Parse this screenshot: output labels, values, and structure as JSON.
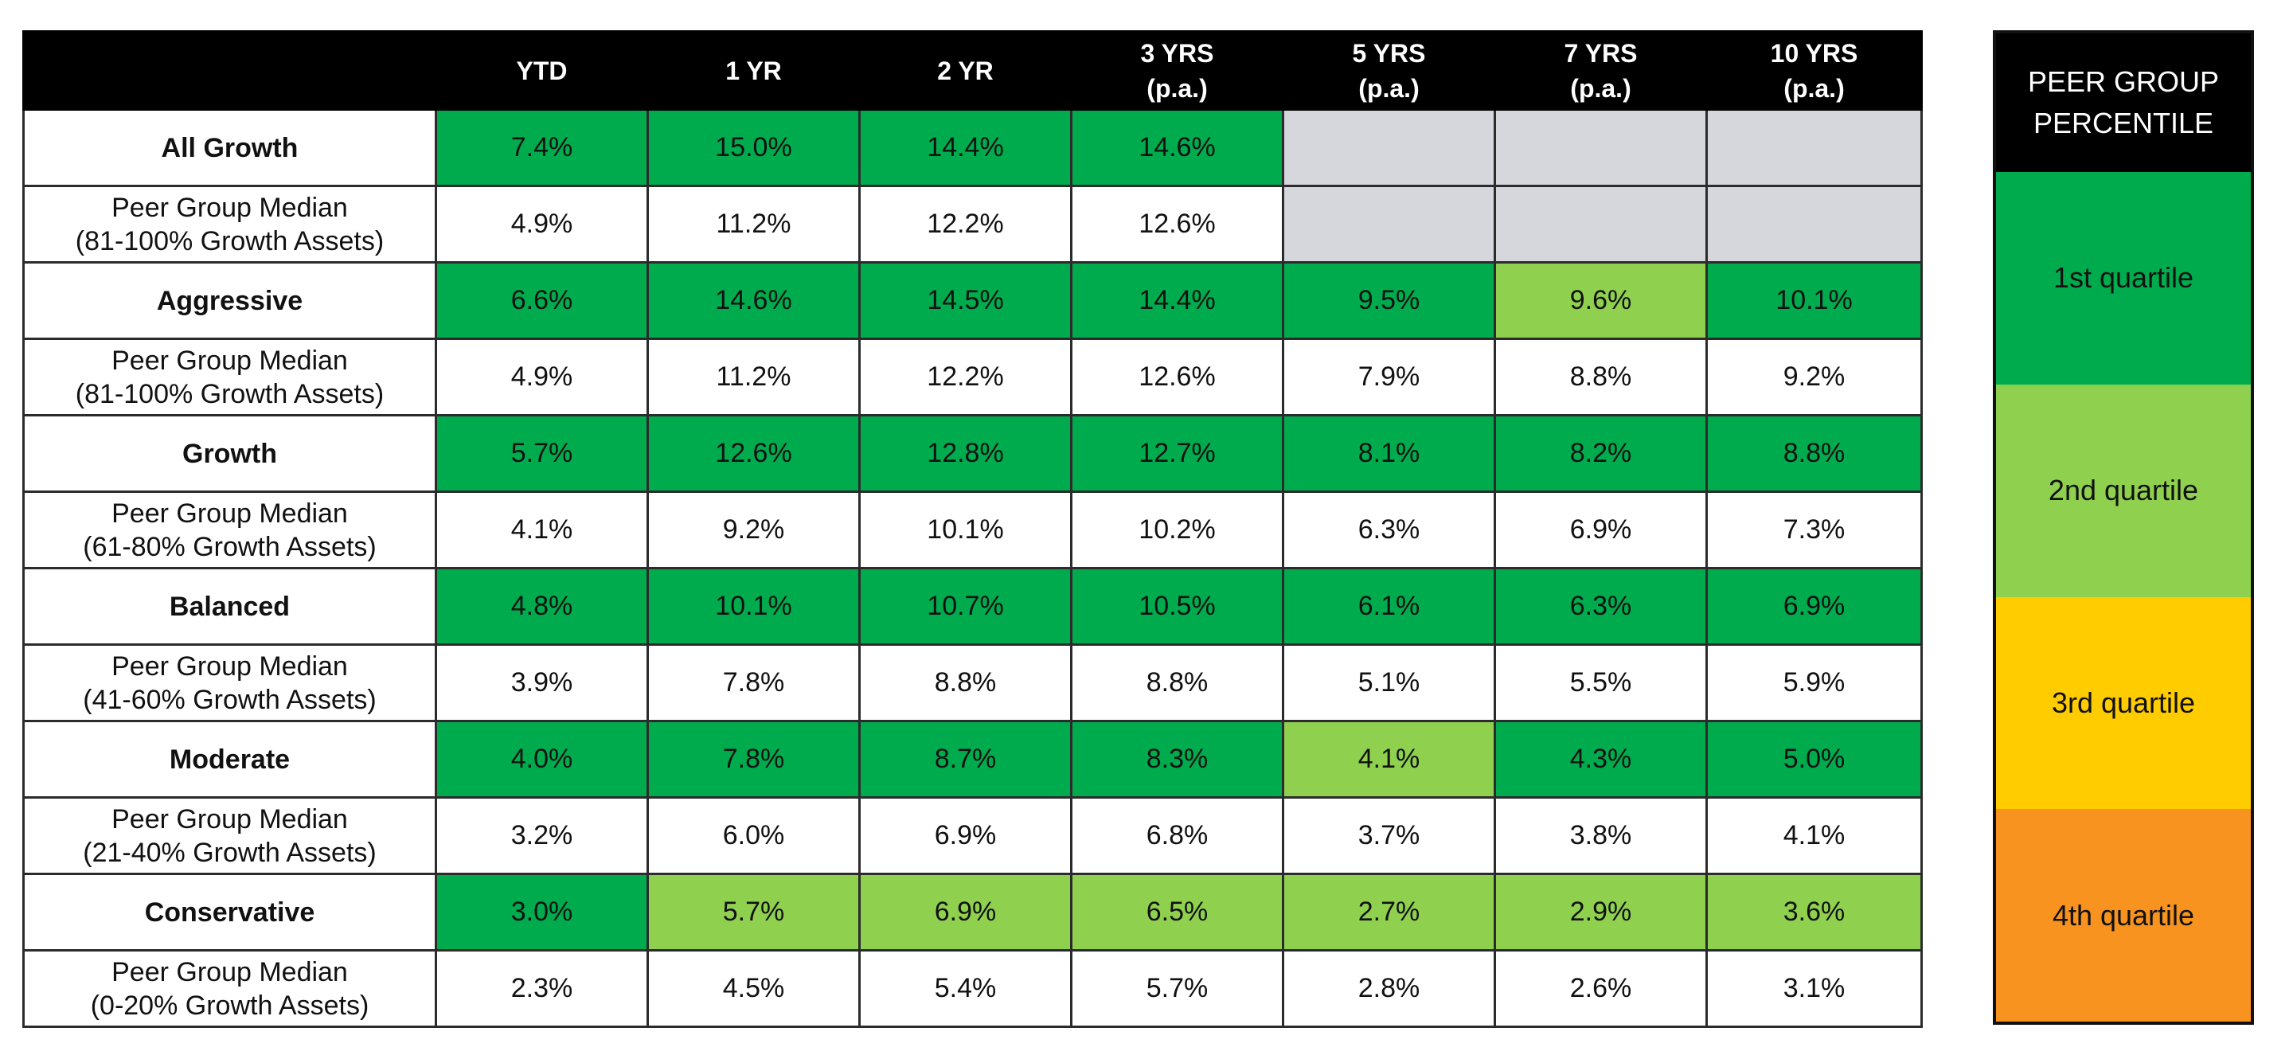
{
  "chart_data": {
    "type": "table",
    "columns": [
      {
        "line1": "",
        "line2": ""
      },
      {
        "line1": "YTD",
        "line2": ""
      },
      {
        "line1": "1 YR",
        "line2": ""
      },
      {
        "line1": "2 YR",
        "line2": ""
      },
      {
        "line1": "3 YRS",
        "line2": "(p.a.)"
      },
      {
        "line1": "5 YRS",
        "line2": "(p.a.)"
      },
      {
        "line1": "7 YRS",
        "line2": "(p.a.)"
      },
      {
        "line1": "10 YRS",
        "line2": "(p.a.)"
      }
    ],
    "rows": [
      {
        "kind": "strategy",
        "label_lines": [
          "All Growth"
        ],
        "values": [
          "7.4%",
          "15.0%",
          "14.4%",
          "14.6%",
          "",
          "",
          ""
        ],
        "quartiles": [
          "q1",
          "q1",
          "q1",
          "q1",
          "na",
          "na",
          "na"
        ]
      },
      {
        "kind": "median",
        "label_lines": [
          "Peer Group Median",
          "(81-100% Growth Assets)"
        ],
        "values": [
          "4.9%",
          "11.2%",
          "12.2%",
          "12.6%",
          "",
          "",
          ""
        ],
        "quartiles": [
          "wh",
          "wh",
          "wh",
          "wh",
          "na",
          "na",
          "na"
        ]
      },
      {
        "kind": "strategy",
        "label_lines": [
          "Aggressive"
        ],
        "values": [
          "6.6%",
          "14.6%",
          "14.5%",
          "14.4%",
          "9.5%",
          "9.6%",
          "10.1%"
        ],
        "quartiles": [
          "q1",
          "q1",
          "q1",
          "q1",
          "q1",
          "q2",
          "q1"
        ]
      },
      {
        "kind": "median",
        "label_lines": [
          "Peer Group Median",
          "(81-100% Growth Assets)"
        ],
        "values": [
          "4.9%",
          "11.2%",
          "12.2%",
          "12.6%",
          "7.9%",
          "8.8%",
          "9.2%"
        ],
        "quartiles": [
          "wh",
          "wh",
          "wh",
          "wh",
          "wh",
          "wh",
          "wh"
        ]
      },
      {
        "kind": "strategy",
        "label_lines": [
          "Growth"
        ],
        "values": [
          "5.7%",
          "12.6%",
          "12.8%",
          "12.7%",
          "8.1%",
          "8.2%",
          "8.8%"
        ],
        "quartiles": [
          "q1",
          "q1",
          "q1",
          "q1",
          "q1",
          "q1",
          "q1"
        ]
      },
      {
        "kind": "median",
        "label_lines": [
          "Peer Group Median",
          "(61-80% Growth Assets)"
        ],
        "values": [
          "4.1%",
          "9.2%",
          "10.1%",
          "10.2%",
          "6.3%",
          "6.9%",
          "7.3%"
        ],
        "quartiles": [
          "wh",
          "wh",
          "wh",
          "wh",
          "wh",
          "wh",
          "wh"
        ]
      },
      {
        "kind": "strategy",
        "label_lines": [
          "Balanced"
        ],
        "values": [
          "4.8%",
          "10.1%",
          "10.7%",
          "10.5%",
          "6.1%",
          "6.3%",
          "6.9%"
        ],
        "quartiles": [
          "q1",
          "q1",
          "q1",
          "q1",
          "q1",
          "q1",
          "q1"
        ]
      },
      {
        "kind": "median",
        "label_lines": [
          "Peer Group Median",
          "(41-60% Growth Assets)"
        ],
        "values": [
          "3.9%",
          "7.8%",
          "8.8%",
          "8.8%",
          "5.1%",
          "5.5%",
          "5.9%"
        ],
        "quartiles": [
          "wh",
          "wh",
          "wh",
          "wh",
          "wh",
          "wh",
          "wh"
        ]
      },
      {
        "kind": "strategy",
        "label_lines": [
          "Moderate"
        ],
        "values": [
          "4.0%",
          "7.8%",
          "8.7%",
          "8.3%",
          "4.1%",
          "4.3%",
          "5.0%"
        ],
        "quartiles": [
          "q1",
          "q1",
          "q1",
          "q1",
          "q2",
          "q1",
          "q1"
        ]
      },
      {
        "kind": "median",
        "label_lines": [
          "Peer Group Median",
          "(21-40% Growth Assets)"
        ],
        "values": [
          "3.2%",
          "6.0%",
          "6.9%",
          "6.8%",
          "3.7%",
          "3.8%",
          "4.1%"
        ],
        "quartiles": [
          "wh",
          "wh",
          "wh",
          "wh",
          "wh",
          "wh",
          "wh"
        ]
      },
      {
        "kind": "strategy",
        "label_lines": [
          "Conservative"
        ],
        "values": [
          "3.0%",
          "5.7%",
          "6.9%",
          "6.5%",
          "2.7%",
          "2.9%",
          "3.6%"
        ],
        "quartiles": [
          "q1",
          "q2",
          "q2",
          "q2",
          "q2",
          "q2",
          "q2"
        ]
      },
      {
        "kind": "median",
        "label_lines": [
          "Peer Group Median",
          "(0-20% Growth Assets)"
        ],
        "values": [
          "2.3%",
          "4.5%",
          "5.4%",
          "5.7%",
          "2.8%",
          "2.6%",
          "3.1%"
        ],
        "quartiles": [
          "wh",
          "wh",
          "wh",
          "wh",
          "wh",
          "wh",
          "wh"
        ]
      }
    ]
  },
  "legend": {
    "title_lines": [
      "PEER GROUP",
      "PERCENTILE"
    ],
    "items": [
      {
        "key": "q1",
        "label": "1st quartile"
      },
      {
        "key": "q2",
        "label": "2nd quartile"
      },
      {
        "key": "q3",
        "label": "3rd quartile"
      },
      {
        "key": "q4",
        "label": "4th quartile"
      }
    ]
  },
  "colors": {
    "q1": "#00ab4e",
    "q2": "#8fd14f",
    "q3": "#ffcc00",
    "q4": "#f7931e",
    "na": "#d6d6dd",
    "wh": "#ffffff",
    "header": "#000000"
  }
}
